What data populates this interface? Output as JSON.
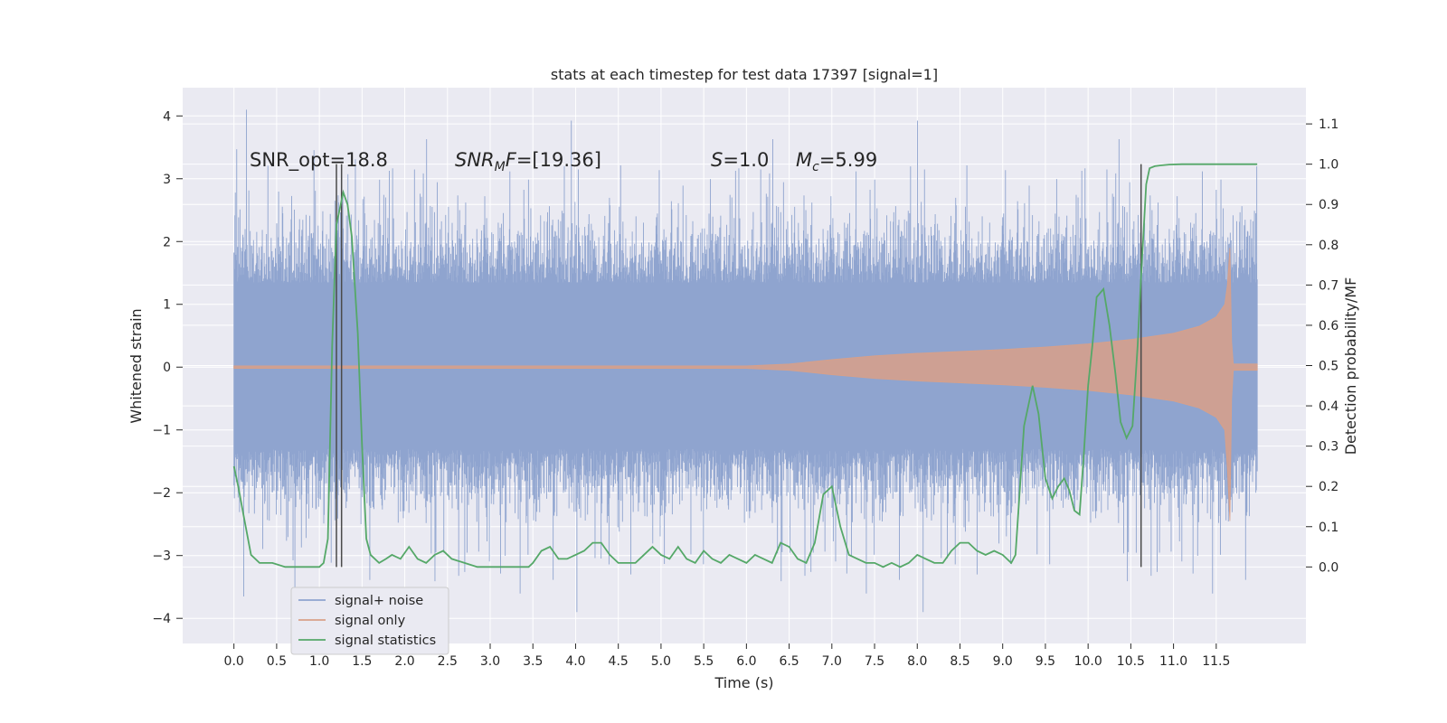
{
  "chart_data": {
    "type": "line",
    "title": "stats at each timestep for test data 17397 [signal=1]",
    "xlabel": "Time (s)",
    "ylabel_left": "Whitened strain",
    "ylabel_right": "Detection probability/MF",
    "xlim": [
      -0.6,
      12.55
    ],
    "ylim_left": [
      -4.4,
      4.45
    ],
    "ylim_right": [
      -0.19,
      1.19
    ],
    "x_ticks": [
      0.0,
      0.5,
      1.0,
      1.5,
      2.0,
      2.5,
      3.0,
      3.5,
      4.0,
      4.5,
      5.0,
      5.5,
      6.0,
      6.5,
      7.0,
      7.5,
      8.0,
      8.5,
      9.0,
      9.5,
      10.0,
      10.5,
      11.0,
      11.5
    ],
    "x_tick_labels": [
      "0.0",
      "0.5",
      "1.0",
      "1.5",
      "2.0",
      "2.5",
      "3.0",
      "3.5",
      "4.0",
      "4.5",
      "5.0",
      "5.5",
      "6.0",
      "6.5",
      "7.0",
      "7.5",
      "8.0",
      "8.5",
      "9.0",
      "9.5",
      "10.0",
      "10.5",
      "11.0",
      "11.5"
    ],
    "y_ticks_left": [
      -4,
      -3,
      -2,
      -1,
      0,
      1,
      2,
      3,
      4
    ],
    "y_tick_labels_left": [
      "−4",
      "−3",
      "−2",
      "−1",
      "0",
      "1",
      "2",
      "3",
      "4"
    ],
    "y_ticks_right": [
      0.0,
      0.1,
      0.2,
      0.3,
      0.4,
      0.5,
      0.6,
      0.7,
      0.8,
      0.9,
      1.0,
      1.1
    ],
    "y_tick_labels_right": [
      "0.0",
      "0.1",
      "0.2",
      "0.3",
      "0.4",
      "0.5",
      "0.6",
      "0.7",
      "0.8",
      "0.9",
      "1.0",
      "1.1"
    ],
    "grid": true,
    "legend_position": "lower-left",
    "colors": {
      "background": "#eaeaf2",
      "grid": "#ffffff",
      "signal_noise": "#8fa4cf",
      "signal_only": "#d9a088",
      "signal_statistics": "#55a868",
      "markers": "#4a4a4a"
    },
    "annotations": {
      "snr_opt": "SNR_opt=18.8",
      "snr_mf_main": "SNR",
      "snr_mf_sub": "M",
      "snr_mf_tail": "F=[19.36]",
      "s_italic": "S",
      "s_value": "=1.0",
      "mc_main": "M",
      "mc_sub": "c",
      "mc_value": "=5.99"
    },
    "vertical_markers": [
      1.2,
      1.26,
      10.62
    ],
    "series": [
      {
        "name": "signal+ noise",
        "kind": "noise-band",
        "x_range": [
          0.0,
          11.98
        ],
        "core_band": [
          -1.3,
          1.35
        ],
        "spike_max": 4.1,
        "spike_min": -3.9
      },
      {
        "name": "signal only",
        "kind": "chirp-envelope",
        "x": [
          0.0,
          6.0,
          6.5,
          7.0,
          7.5,
          8.0,
          8.5,
          9.0,
          9.5,
          10.0,
          10.5,
          11.0,
          11.3,
          11.5,
          11.6,
          11.63,
          11.66,
          11.68,
          11.7,
          11.98
        ],
        "upper": [
          0.02,
          0.02,
          0.05,
          0.12,
          0.18,
          0.22,
          0.25,
          0.28,
          0.32,
          0.37,
          0.44,
          0.54,
          0.65,
          0.8,
          1.0,
          1.3,
          1.9,
          0.4,
          0.05,
          0.05
        ],
        "lower": [
          -0.02,
          -0.02,
          -0.05,
          -0.12,
          -0.18,
          -0.22,
          -0.25,
          -0.28,
          -0.32,
          -0.37,
          -0.44,
          -0.54,
          -0.65,
          -0.8,
          -1.0,
          -1.6,
          -2.45,
          -0.5,
          -0.05,
          -0.05
        ]
      },
      {
        "name": "signal statistics",
        "kind": "line",
        "axis": "right",
        "x": [
          0.0,
          0.05,
          0.12,
          0.2,
          0.3,
          0.45,
          0.6,
          0.75,
          0.9,
          1.0,
          1.05,
          1.1,
          1.15,
          1.2,
          1.28,
          1.33,
          1.38,
          1.45,
          1.5,
          1.55,
          1.6,
          1.65,
          1.7,
          1.78,
          1.85,
          1.95,
          2.05,
          2.15,
          2.25,
          2.35,
          2.45,
          2.55,
          2.7,
          2.85,
          3.0,
          3.15,
          3.3,
          3.45,
          3.5,
          3.6,
          3.7,
          3.8,
          3.9,
          4.0,
          4.1,
          4.2,
          4.3,
          4.4,
          4.5,
          4.6,
          4.7,
          4.8,
          4.9,
          5.0,
          5.1,
          5.2,
          5.3,
          5.4,
          5.5,
          5.6,
          5.7,
          5.8,
          5.9,
          6.0,
          6.1,
          6.2,
          6.3,
          6.4,
          6.5,
          6.6,
          6.7,
          6.8,
          6.9,
          7.0,
          7.1,
          7.2,
          7.3,
          7.4,
          7.5,
          7.6,
          7.7,
          7.8,
          7.9,
          8.0,
          8.1,
          8.2,
          8.3,
          8.4,
          8.5,
          8.6,
          8.7,
          8.8,
          8.9,
          9.0,
          9.1,
          9.15,
          9.25,
          9.35,
          9.42,
          9.5,
          9.58,
          9.65,
          9.72,
          9.78,
          9.84,
          9.9,
          9.95,
          10.0,
          10.05,
          10.1,
          10.18,
          10.25,
          10.32,
          10.38,
          10.45,
          10.52,
          10.58,
          10.62,
          10.68,
          10.72,
          10.78,
          10.85,
          10.95,
          11.1,
          11.3,
          11.5,
          11.65,
          11.98
        ],
        "values": [
          0.25,
          0.2,
          0.12,
          0.03,
          0.01,
          0.01,
          0.0,
          0.0,
          0.0,
          0.0,
          0.01,
          0.07,
          0.55,
          0.85,
          0.93,
          0.9,
          0.82,
          0.58,
          0.3,
          0.07,
          0.03,
          0.02,
          0.01,
          0.02,
          0.03,
          0.02,
          0.05,
          0.02,
          0.01,
          0.03,
          0.04,
          0.02,
          0.01,
          0.0,
          0.0,
          0.0,
          0.0,
          0.0,
          0.01,
          0.04,
          0.05,
          0.02,
          0.02,
          0.03,
          0.04,
          0.06,
          0.06,
          0.03,
          0.01,
          0.01,
          0.01,
          0.03,
          0.05,
          0.03,
          0.02,
          0.05,
          0.02,
          0.01,
          0.04,
          0.02,
          0.01,
          0.03,
          0.02,
          0.01,
          0.03,
          0.02,
          0.01,
          0.06,
          0.05,
          0.02,
          0.01,
          0.06,
          0.18,
          0.2,
          0.1,
          0.03,
          0.02,
          0.01,
          0.01,
          0.0,
          0.01,
          0.0,
          0.01,
          0.03,
          0.02,
          0.01,
          0.01,
          0.04,
          0.06,
          0.06,
          0.04,
          0.03,
          0.04,
          0.03,
          0.01,
          0.03,
          0.35,
          0.45,
          0.38,
          0.22,
          0.17,
          0.2,
          0.22,
          0.19,
          0.14,
          0.13,
          0.28,
          0.45,
          0.55,
          0.67,
          0.69,
          0.6,
          0.48,
          0.36,
          0.32,
          0.35,
          0.55,
          0.72,
          0.95,
          0.99,
          0.995,
          0.997,
          0.999,
          1.0,
          1.0,
          1.0,
          1.0,
          1.0
        ]
      }
    ]
  }
}
